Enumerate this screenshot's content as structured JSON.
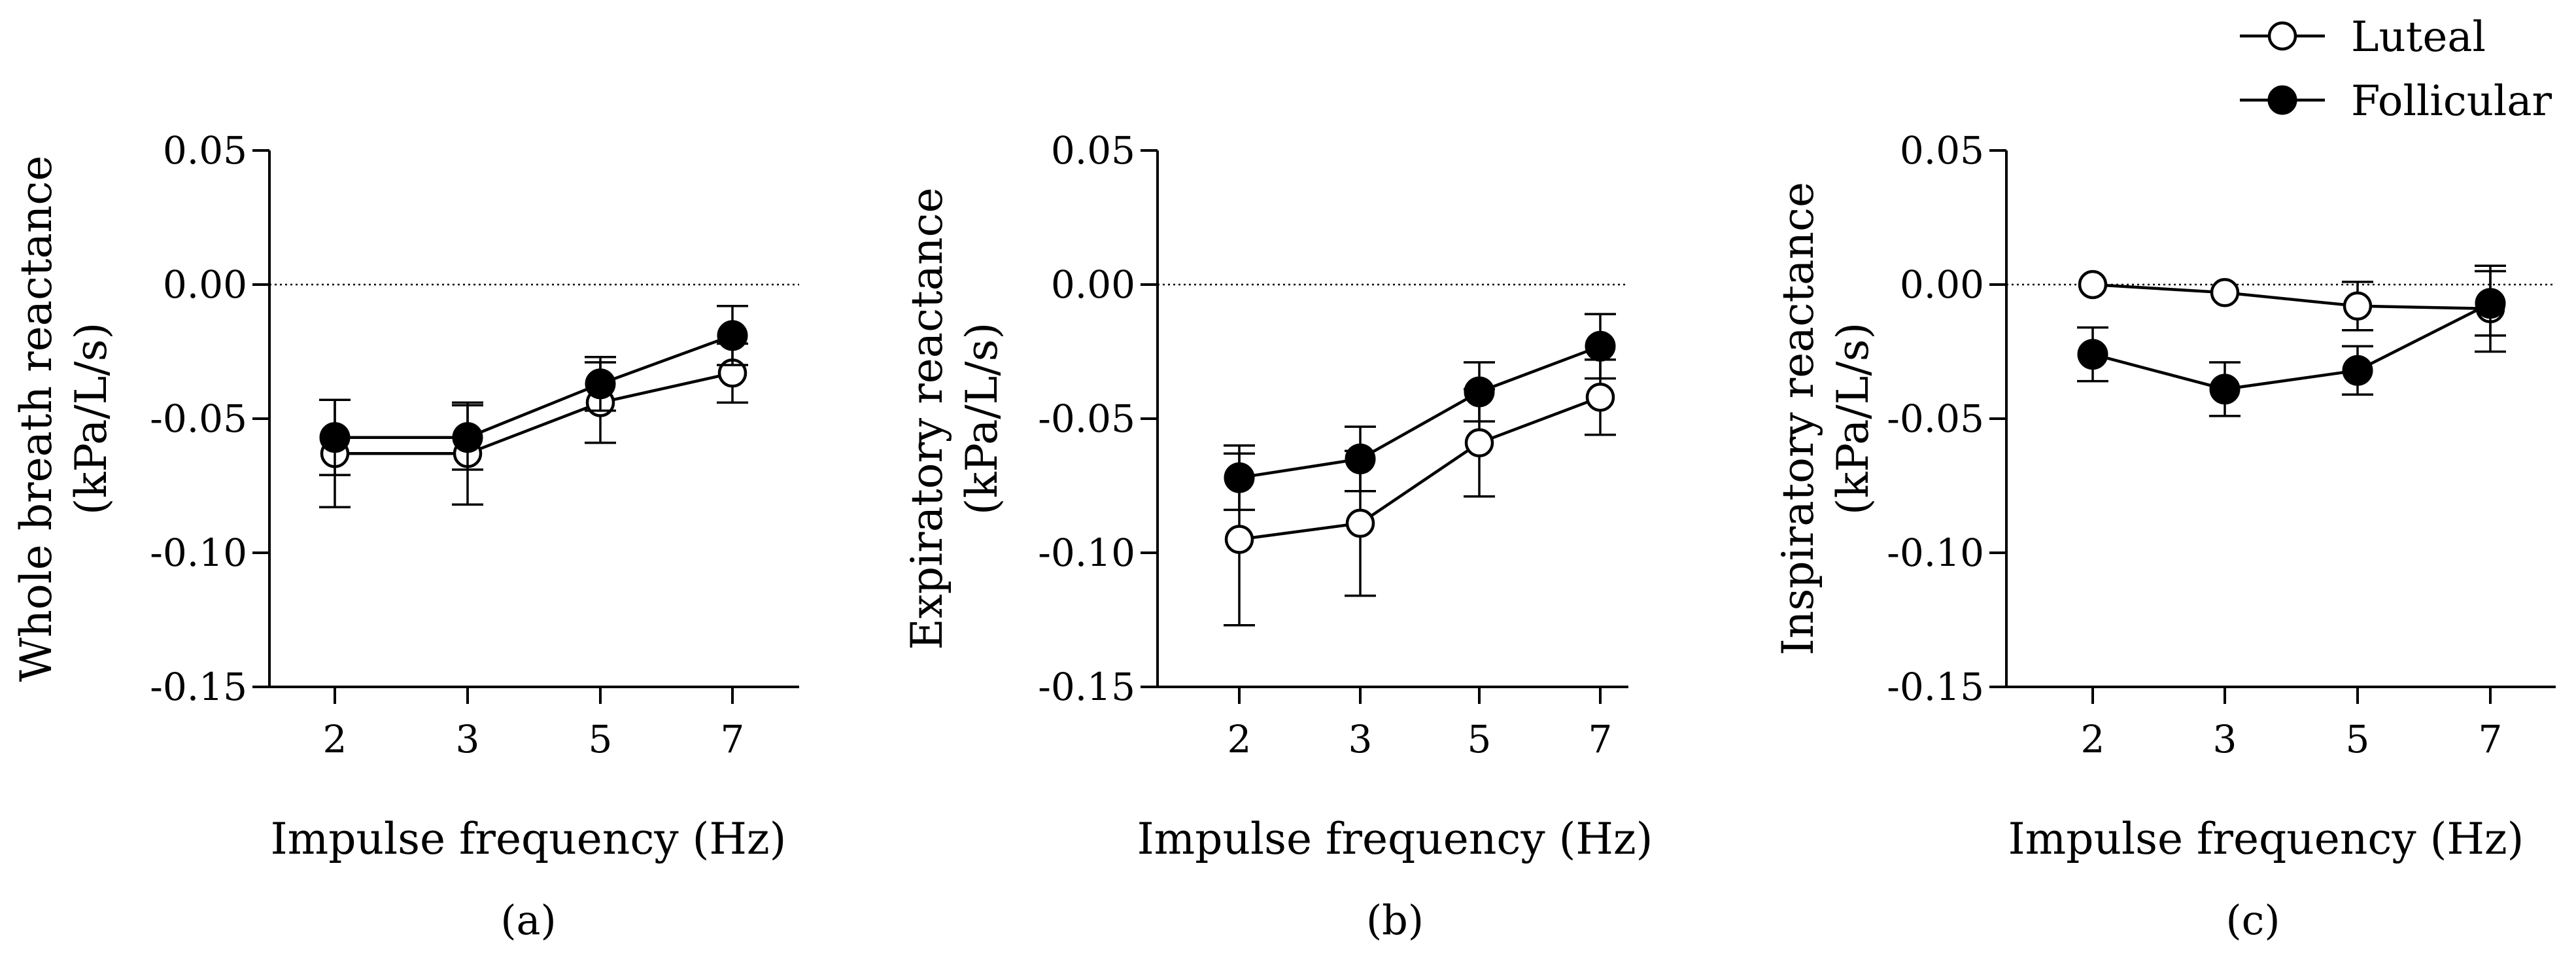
{
  "legend": {
    "entries": [
      {
        "label": "Luteal",
        "marker": "open-circle"
      },
      {
        "label": "Follicular",
        "marker": "filled-circle"
      }
    ]
  },
  "chart_data": [
    {
      "type": "line",
      "panel": "(a)",
      "xlabel": "Impulse frequency (Hz)",
      "ylabel_lines": [
        "Whole breath reactance",
        "(kPa/L/s)"
      ],
      "categories": [
        "2",
        "3",
        "5",
        "7"
      ],
      "ylim": [
        -0.15,
        0.05
      ],
      "yticks": [
        0.05,
        0.0,
        -0.05,
        -0.1,
        -0.15
      ],
      "ytick_labels": [
        "0.05",
        "0.00",
        "-0.05",
        "-0.10",
        "-0.15"
      ],
      "zero_reference_line": true,
      "series": [
        {
          "name": "Luteal",
          "marker": "open-circle",
          "values": [
            -0.063,
            -0.063,
            -0.044,
            -0.033
          ],
          "err": [
            0.02,
            0.019,
            0.015,
            0.011
          ]
        },
        {
          "name": "Follicular",
          "marker": "filled-circle",
          "values": [
            -0.057,
            -0.057,
            -0.037,
            -0.019
          ],
          "err": [
            0.014,
            0.012,
            0.01,
            0.011
          ]
        }
      ]
    },
    {
      "type": "line",
      "panel": "(b)",
      "xlabel": "Impulse frequency (Hz)",
      "ylabel_lines": [
        "Expiratory reactance",
        "(kPa/L/s)"
      ],
      "categories": [
        "2",
        "3",
        "5",
        "7"
      ],
      "ylim": [
        -0.15,
        0.05
      ],
      "yticks": [
        0.05,
        0.0,
        -0.05,
        -0.1,
        -0.15
      ],
      "ytick_labels": [
        "0.05",
        "0.00",
        "-0.05",
        "-0.10",
        "-0.15"
      ],
      "zero_reference_line": true,
      "series": [
        {
          "name": "Luteal",
          "marker": "open-circle",
          "values": [
            -0.095,
            -0.089,
            -0.059,
            -0.042
          ],
          "err": [
            0.032,
            0.027,
            0.02,
            0.014
          ]
        },
        {
          "name": "Follicular",
          "marker": "filled-circle",
          "values": [
            -0.072,
            -0.065,
            -0.04,
            -0.023
          ],
          "err": [
            0.012,
            0.012,
            0.011,
            0.012
          ]
        }
      ]
    },
    {
      "type": "line",
      "panel": "(c)",
      "xlabel": "Impulse frequency (Hz)",
      "ylabel_lines": [
        "Inspiratory reactance",
        "(kPa/L/s)"
      ],
      "categories": [
        "2",
        "3",
        "5",
        "7"
      ],
      "ylim": [
        -0.15,
        0.05
      ],
      "yticks": [
        0.05,
        0.0,
        -0.05,
        -0.1,
        -0.15
      ],
      "ytick_labels": [
        "0.05",
        "0.00",
        "-0.05",
        "-0.10",
        "-0.15"
      ],
      "zero_reference_line": true,
      "series": [
        {
          "name": "Luteal",
          "marker": "open-circle",
          "values": [
            0.0,
            -0.003,
            -0.008,
            -0.009
          ],
          "err": [
            0.0,
            0.0,
            0.009,
            0.016
          ]
        },
        {
          "name": "Follicular",
          "marker": "filled-circle",
          "values": [
            -0.026,
            -0.039,
            -0.032,
            -0.007
          ],
          "err": [
            0.01,
            0.01,
            0.009,
            0.012
          ]
        }
      ]
    }
  ]
}
